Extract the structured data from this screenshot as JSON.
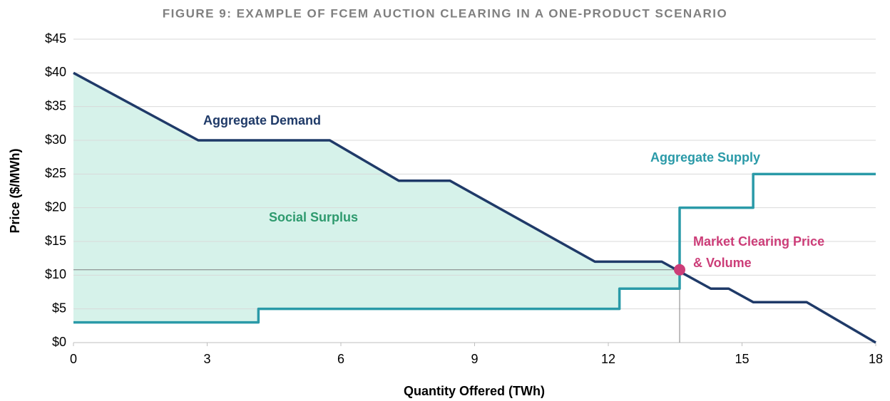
{
  "chart_data": {
    "type": "line",
    "title": "FIGURE 9: EXAMPLE OF FCEM AUCTION CLEARING IN A ONE-PRODUCT SCENARIO",
    "xlabel": "Quantity Offered (TWh)",
    "ylabel": "Price ($/MWh)",
    "xlim": [
      0,
      18
    ],
    "ylim": [
      0,
      45
    ],
    "xticks": [
      0,
      3,
      6,
      9,
      12,
      15,
      18
    ],
    "yticks": [
      {
        "value": 0,
        "label": "$0"
      },
      {
        "value": 5,
        "label": "$5"
      },
      {
        "value": 10,
        "label": "$10"
      },
      {
        "value": 15,
        "label": "$15"
      },
      {
        "value": 20,
        "label": "$20"
      },
      {
        "value": 25,
        "label": "$25"
      },
      {
        "value": 30,
        "label": "$30"
      },
      {
        "value": 35,
        "label": "$35"
      },
      {
        "value": 40,
        "label": "$40"
      },
      {
        "value": 45,
        "label": "$45"
      }
    ],
    "grid": true,
    "series": [
      {
        "name": "Aggregate Demand",
        "color": "#1f3a68",
        "x": [
          0,
          2.8,
          5.75,
          7.3,
          8.45,
          11.7,
          13.2,
          14.3,
          14.7,
          15.25,
          16.45,
          18
        ],
        "values": [
          40,
          30,
          30,
          24,
          24,
          12,
          12,
          8,
          8,
          6,
          6,
          0
        ]
      },
      {
        "name": "Aggregate Supply",
        "color": "#2a9aa8",
        "x": [
          0,
          4.15,
          4.15,
          12.25,
          12.25,
          13.6,
          13.6,
          15.25,
          15.25,
          18
        ],
        "values": [
          3,
          3,
          5,
          5,
          8,
          8,
          20,
          20,
          25,
          25
        ]
      }
    ],
    "clearing": {
      "x": 13.6,
      "y": 10.8,
      "color": "#cc3d78"
    },
    "annotations": {
      "surplus": "Social Surplus",
      "clearing": [
        "Market Clearing Price",
        "& Volume"
      ]
    }
  }
}
